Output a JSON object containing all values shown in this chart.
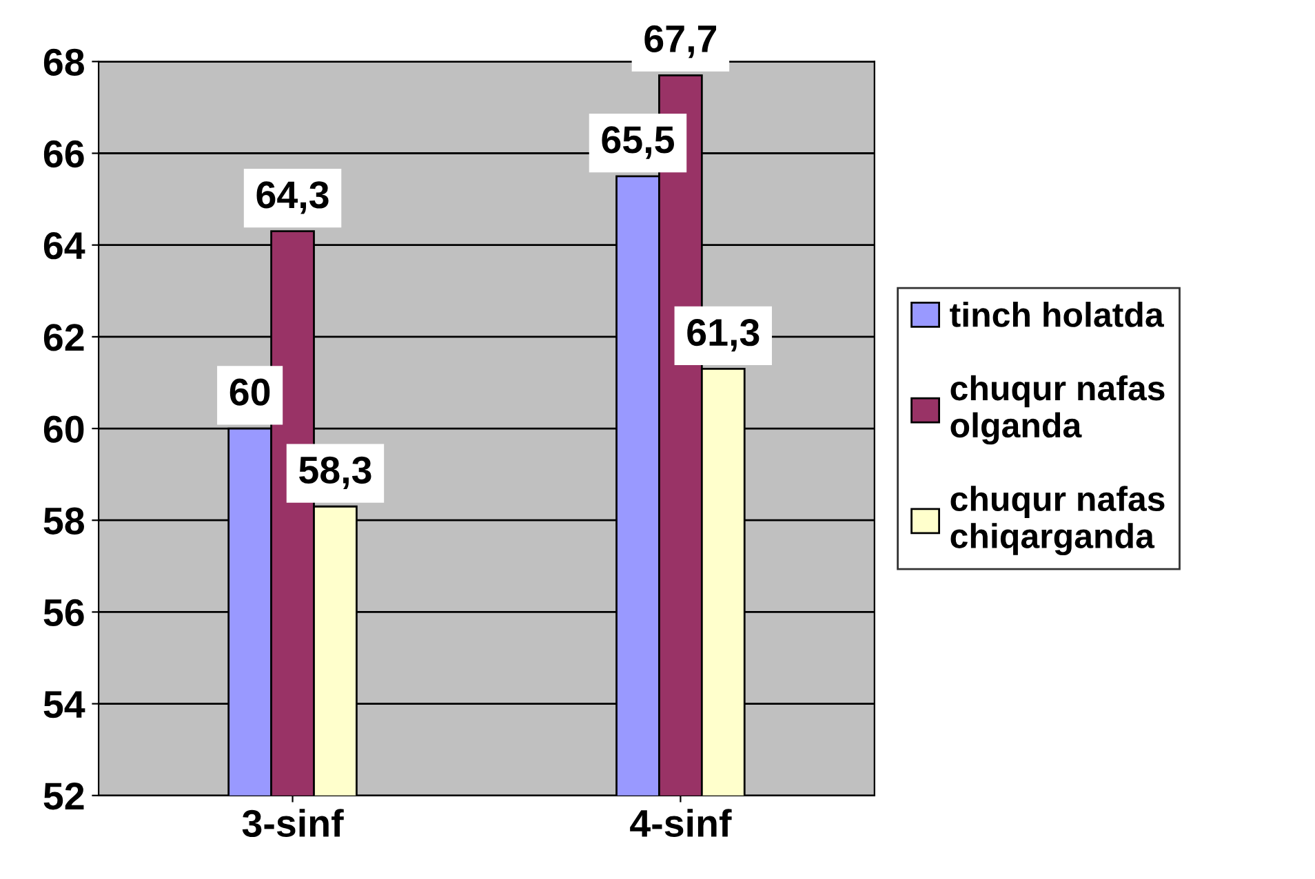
{
  "chart_data": {
    "type": "bar",
    "categories": [
      "3-sinf",
      "4-sinf"
    ],
    "series": [
      {
        "name": "tinch holatda",
        "color": "#9999ff",
        "values": [
          60,
          65.5
        ],
        "value_labels": [
          "60",
          "65,5"
        ]
      },
      {
        "name": "chuqur nafas\nolganda",
        "color": "#993366",
        "values": [
          64.3,
          67.7
        ],
        "value_labels": [
          "64,3",
          "67,7"
        ]
      },
      {
        "name": "chuqur nafas\nchiqarganda",
        "color": "#ffffcc",
        "values": [
          58.3,
          61.3
        ],
        "value_labels": [
          "58,3",
          "61,3"
        ]
      }
    ],
    "ylim": [
      52,
      68
    ],
    "yticks": [
      52,
      54,
      56,
      58,
      60,
      62,
      64,
      66,
      68
    ],
    "grid": "y",
    "legend": "right"
  }
}
